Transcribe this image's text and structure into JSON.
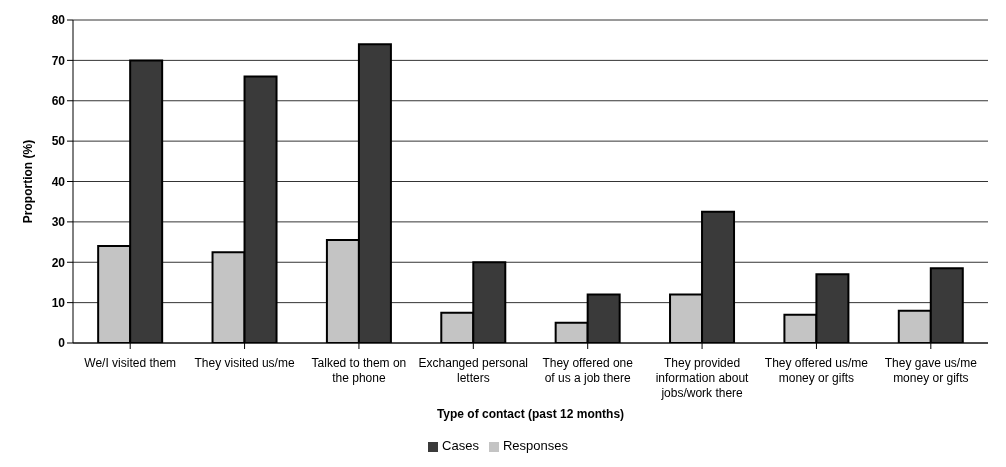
{
  "chart_data": {
    "type": "bar",
    "xlabel": "Type of contact (past 12 months)",
    "ylabel": "Proportion (%)",
    "categories": [
      "We/I visited them",
      "They visited us/me",
      "Talked to them on the phone",
      "Exchanged personal letters",
      "They offered one of us a job there",
      "They provided information about jobs/work there",
      "They offered us/me money or gifts",
      "They gave us/me money or gifts"
    ],
    "series": [
      {
        "name": "Responses",
        "color": "#c4c4c4",
        "values": [
          24,
          22.5,
          25.5,
          7.5,
          5,
          12,
          7,
          8
        ]
      },
      {
        "name": "Cases",
        "color": "#3a3a3a",
        "values": [
          70,
          66,
          74,
          20,
          12,
          32.5,
          17,
          18.5
        ]
      }
    ],
    "ylim": [
      0,
      80
    ],
    "yticks": [
      0,
      10,
      20,
      30,
      40,
      50,
      60,
      70,
      80
    ],
    "grid": "y",
    "legend": "bottom"
  }
}
